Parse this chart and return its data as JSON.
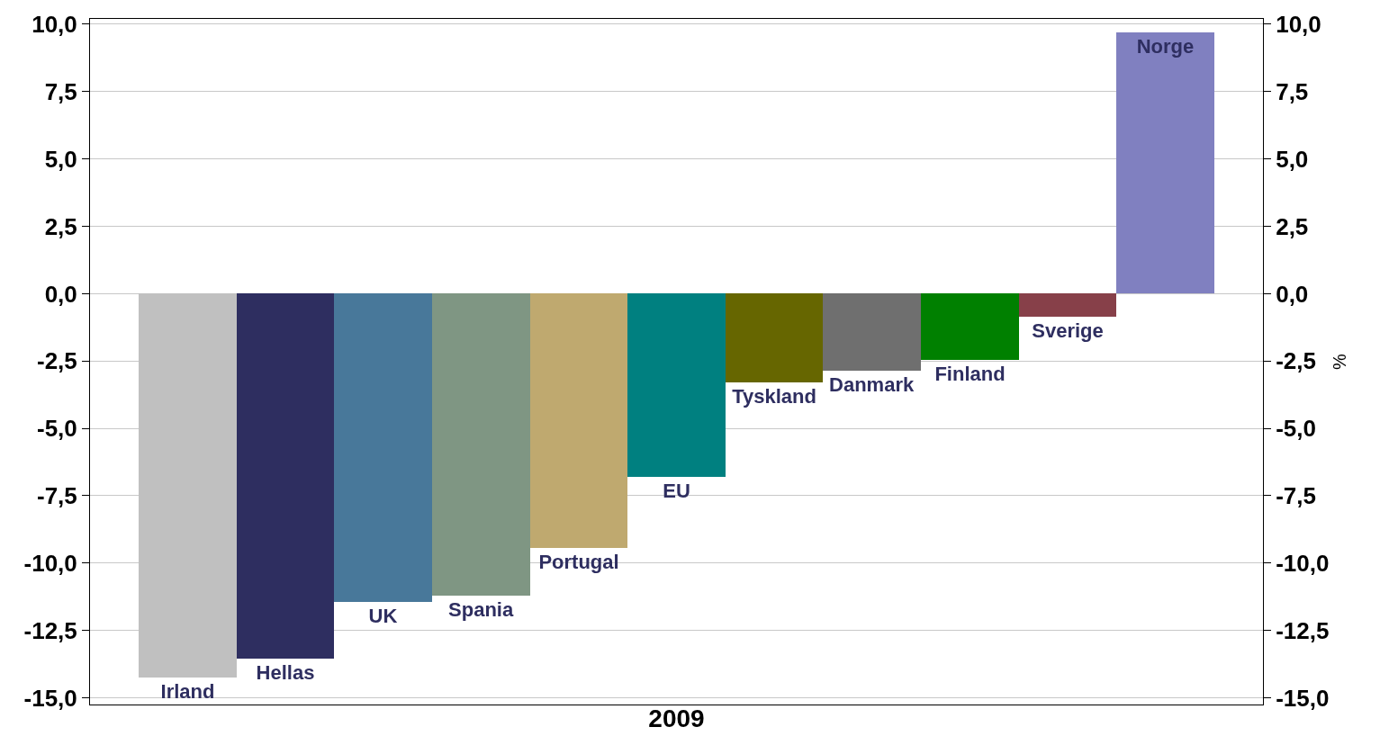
{
  "chart_data": {
    "type": "bar",
    "xlabel": "2009",
    "y2label": "%",
    "categories": [
      "Irland",
      "Hellas",
      "UK",
      "Spania",
      "Portugal",
      "EU",
      "Tyskland",
      "Danmark",
      "Finland",
      "Sverige",
      "Norge"
    ],
    "values": [
      -14.25,
      -13.55,
      -11.45,
      -11.2,
      -9.45,
      -6.8,
      -3.3,
      -2.85,
      -2.45,
      -0.85,
      9.7
    ],
    "colors": [
      "#c0c0c0",
      "#2e2e60",
      "#48789a",
      "#7f9683",
      "#bfa96f",
      "#008080",
      "#666600",
      "#6f6f6f",
      "#008000",
      "#874049",
      "#8080c0"
    ],
    "ylim": [
      -15.25,
      10.2
    ],
    "yticks": [
      {
        "value": -15,
        "label": "-15,0"
      },
      {
        "value": -12.5,
        "label": "-12,5"
      },
      {
        "value": -10,
        "label": "-10,0"
      },
      {
        "value": -7.5,
        "label": "-7,5"
      },
      {
        "value": -5,
        "label": "-5,0"
      },
      {
        "value": -2.5,
        "label": "-2,5"
      },
      {
        "value": 0,
        "label": "0,0"
      },
      {
        "value": 2.5,
        "label": "2,5"
      },
      {
        "value": 5,
        "label": "5,0"
      },
      {
        "value": 7.5,
        "label": "7,5"
      },
      {
        "value": 10,
        "label": "10,0"
      }
    ],
    "y2lim": [
      -15.25,
      10.2
    ],
    "y2ticks": [
      {
        "value": -15,
        "label": "-15,0"
      },
      {
        "value": -12.5,
        "label": "-12,5"
      },
      {
        "value": -10,
        "label": "-10,0"
      },
      {
        "value": -7.5,
        "label": "-7,5"
      },
      {
        "value": -5,
        "label": "-5,0"
      },
      {
        "value": -2.5,
        "label": "-2,5"
      },
      {
        "value": 0,
        "label": "0,0"
      },
      {
        "value": 2.5,
        "label": "2,5"
      },
      {
        "value": 5,
        "label": "5,0"
      },
      {
        "value": 7.5,
        "label": "7,5"
      },
      {
        "value": 10,
        "label": "10,0"
      }
    ],
    "grid": "y",
    "tick_labels": "y"
  }
}
